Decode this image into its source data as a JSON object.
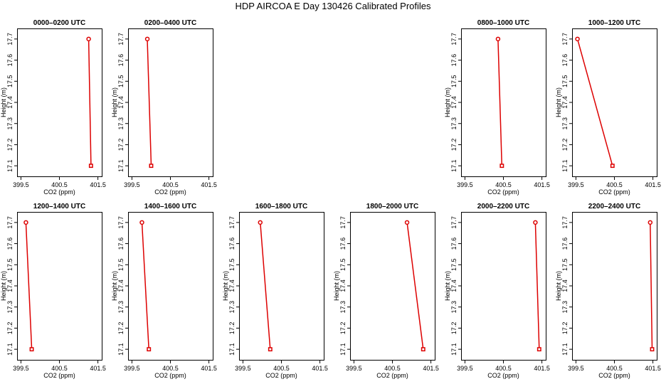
{
  "title": "HDP AIRCOA E  Day 130426  Calibrated Profiles",
  "chart_data": [
    {
      "type": "line",
      "title": "0000–0200 UTC",
      "xlabel": "CO2 (ppm)",
      "ylabel": "Height (m)",
      "xlim": [
        399.4,
        401.6
      ],
      "ylim": [
        17.05,
        17.75
      ],
      "xticks": [
        "399.5",
        "400.5",
        "401.5"
      ],
      "yticks": [
        "17.1",
        "17.2",
        "17.3",
        "17.4",
        "17.5",
        "17.6",
        "17.7"
      ],
      "x": [
        401.26,
        401.32
      ],
      "y": [
        17.7,
        17.1
      ],
      "grid": false
    },
    {
      "type": "line",
      "title": "0200–0400 UTC",
      "xlabel": "CO2 (ppm)",
      "ylabel": "Height (m)",
      "xlim": [
        399.4,
        401.6
      ],
      "ylim": [
        17.05,
        17.75
      ],
      "xticks": [
        "399.5",
        "400.5",
        "401.5"
      ],
      "yticks": [
        "17.1",
        "17.2",
        "17.3",
        "17.4",
        "17.5",
        "17.6",
        "17.7"
      ],
      "x": [
        399.9,
        400.0
      ],
      "y": [
        17.7,
        17.1
      ],
      "grid": false
    },
    {
      "type": "line",
      "title": "0800–1000 UTC",
      "xlabel": "CO2 (ppm)",
      "ylabel": "Height (m)",
      "xlim": [
        399.4,
        401.6
      ],
      "ylim": [
        17.05,
        17.75
      ],
      "xticks": [
        "399.5",
        "400.5",
        "401.5"
      ],
      "yticks": [
        "17.1",
        "17.2",
        "17.3",
        "17.4",
        "17.5",
        "17.6",
        "17.7"
      ],
      "x": [
        400.36,
        400.46
      ],
      "y": [
        17.7,
        17.1
      ],
      "grid": false
    },
    {
      "type": "line",
      "title": "1000–1200 UTC",
      "xlabel": "CO2 (ppm)",
      "ylabel": "Height (m)",
      "xlim": [
        399.4,
        401.6
      ],
      "ylim": [
        17.05,
        17.75
      ],
      "xticks": [
        "399.5",
        "400.5",
        "401.5"
      ],
      "yticks": [
        "17.1",
        "17.2",
        "17.3",
        "17.4",
        "17.5",
        "17.6",
        "17.7"
      ],
      "x": [
        399.54,
        400.45
      ],
      "y": [
        17.7,
        17.1
      ],
      "grid": false
    },
    {
      "type": "line",
      "title": "1200–1400 UTC",
      "xlabel": "CO2 (ppm)",
      "ylabel": "Height (m)",
      "xlim": [
        399.4,
        401.6
      ],
      "ylim": [
        17.05,
        17.75
      ],
      "xticks": [
        "399.5",
        "400.5",
        "401.5"
      ],
      "yticks": [
        "17.1",
        "17.2",
        "17.3",
        "17.4",
        "17.5",
        "17.6",
        "17.7"
      ],
      "x": [
        399.63,
        399.78
      ],
      "y": [
        17.7,
        17.1
      ],
      "grid": false
    },
    {
      "type": "line",
      "title": "1400–1600 UTC",
      "xlabel": "CO2 (ppm)",
      "ylabel": "Height (m)",
      "xlim": [
        399.4,
        401.6
      ],
      "ylim": [
        17.05,
        17.75
      ],
      "xticks": [
        "399.5",
        "400.5",
        "401.5"
      ],
      "yticks": [
        "17.1",
        "17.2",
        "17.3",
        "17.4",
        "17.5",
        "17.6",
        "17.7"
      ],
      "x": [
        399.76,
        399.94
      ],
      "y": [
        17.7,
        17.1
      ],
      "grid": false
    },
    {
      "type": "line",
      "title": "1600–1800 UTC",
      "xlabel": "CO2 (ppm)",
      "ylabel": "Height (m)",
      "xlim": [
        399.4,
        401.6
      ],
      "ylim": [
        17.05,
        17.75
      ],
      "xticks": [
        "399.5",
        "400.5",
        "401.5"
      ],
      "yticks": [
        "17.1",
        "17.2",
        "17.3",
        "17.4",
        "17.5",
        "17.6",
        "17.7"
      ],
      "x": [
        399.95,
        400.21
      ],
      "y": [
        17.7,
        17.1
      ],
      "grid": false
    },
    {
      "type": "line",
      "title": "1800–2000 UTC",
      "xlabel": "CO2 (ppm)",
      "ylabel": "Height (m)",
      "xlim": [
        399.4,
        401.6
      ],
      "ylim": [
        17.05,
        17.75
      ],
      "xticks": [
        "399.5",
        "400.5",
        "401.5"
      ],
      "yticks": [
        "17.1",
        "17.2",
        "17.3",
        "17.4",
        "17.5",
        "17.6",
        "17.7"
      ],
      "x": [
        400.88,
        401.3
      ],
      "y": [
        17.7,
        17.1
      ],
      "grid": false
    },
    {
      "type": "line",
      "title": "2000–2200 UTC",
      "xlabel": "CO2 (ppm)",
      "ylabel": "Height (m)",
      "xlim": [
        399.4,
        401.6
      ],
      "ylim": [
        17.05,
        17.75
      ],
      "xticks": [
        "399.5",
        "400.5",
        "401.5"
      ],
      "yticks": [
        "17.1",
        "17.2",
        "17.3",
        "17.4",
        "17.5",
        "17.6",
        "17.7"
      ],
      "x": [
        401.33,
        401.43
      ],
      "y": [
        17.7,
        17.1
      ],
      "grid": false
    },
    {
      "type": "line",
      "title": "2200–2400 UTC",
      "xlabel": "CO2 (ppm)",
      "ylabel": "Height (m)",
      "xlim": [
        399.4,
        401.6
      ],
      "ylim": [
        17.05,
        17.75
      ],
      "xticks": [
        "399.5",
        "400.5",
        "401.5"
      ],
      "yticks": [
        "17.1",
        "17.2",
        "17.3",
        "17.4",
        "17.5",
        "17.6",
        "17.7"
      ],
      "x": [
        401.43,
        401.48
      ],
      "y": [
        17.7,
        17.1
      ],
      "grid": false
    }
  ],
  "colors": {
    "series": "#dd0000",
    "frame": "#000000",
    "background": "#ffffff"
  }
}
